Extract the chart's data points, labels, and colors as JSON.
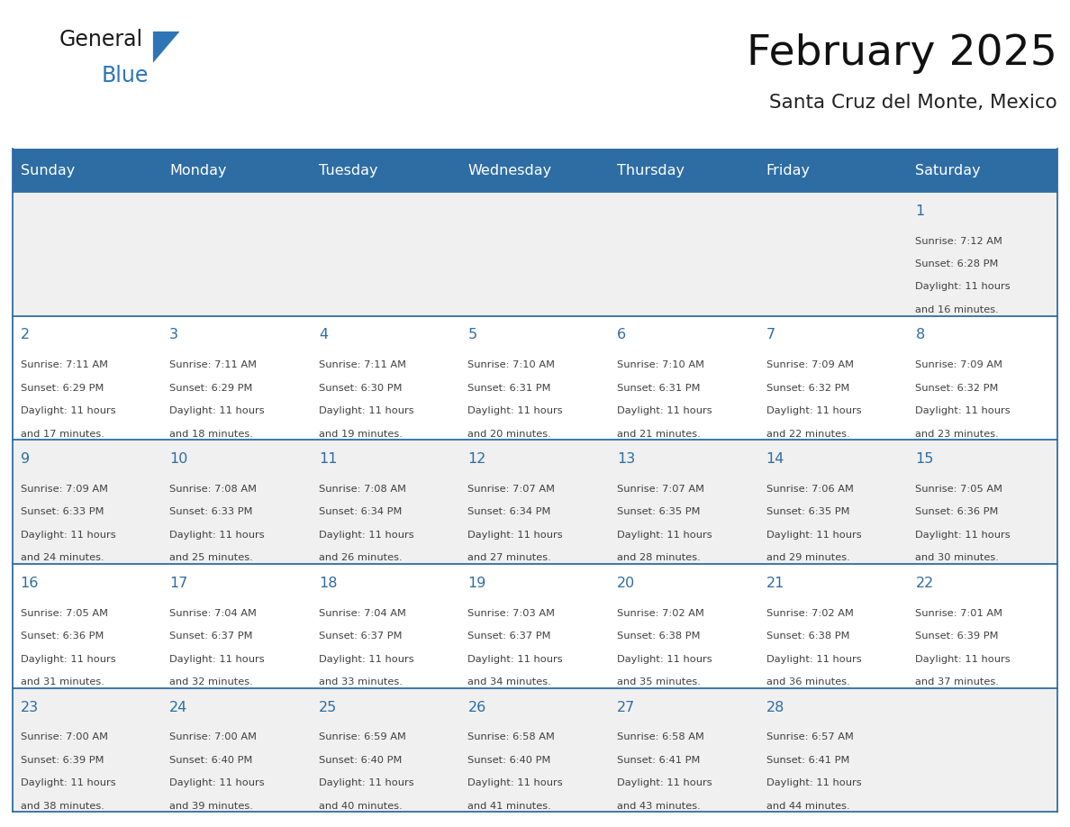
{
  "title": "February 2025",
  "subtitle": "Santa Cruz del Monte, Mexico",
  "header_bg": "#2E6DA4",
  "header_text": "#FFFFFF",
  "row_bg_odd": "#F0F0F0",
  "row_bg_even": "#FFFFFF",
  "cell_border": "#2E6DA4",
  "day_number_color": "#2E6DA4",
  "text_color": "#404040",
  "days_of_week": [
    "Sunday",
    "Monday",
    "Tuesday",
    "Wednesday",
    "Thursday",
    "Friday",
    "Saturday"
  ],
  "weeks": [
    [
      null,
      null,
      null,
      null,
      null,
      null,
      1
    ],
    [
      2,
      3,
      4,
      5,
      6,
      7,
      8
    ],
    [
      9,
      10,
      11,
      12,
      13,
      14,
      15
    ],
    [
      16,
      17,
      18,
      19,
      20,
      21,
      22
    ],
    [
      23,
      24,
      25,
      26,
      27,
      28,
      null
    ]
  ],
  "cell_data": {
    "1": {
      "sunrise": "7:12 AM",
      "sunset": "6:28 PM",
      "daylight_line1": "Daylight: 11 hours",
      "daylight_line2": "and 16 minutes."
    },
    "2": {
      "sunrise": "7:11 AM",
      "sunset": "6:29 PM",
      "daylight_line1": "Daylight: 11 hours",
      "daylight_line2": "and 17 minutes."
    },
    "3": {
      "sunrise": "7:11 AM",
      "sunset": "6:29 PM",
      "daylight_line1": "Daylight: 11 hours",
      "daylight_line2": "and 18 minutes."
    },
    "4": {
      "sunrise": "7:11 AM",
      "sunset": "6:30 PM",
      "daylight_line1": "Daylight: 11 hours",
      "daylight_line2": "and 19 minutes."
    },
    "5": {
      "sunrise": "7:10 AM",
      "sunset": "6:31 PM",
      "daylight_line1": "Daylight: 11 hours",
      "daylight_line2": "and 20 minutes."
    },
    "6": {
      "sunrise": "7:10 AM",
      "sunset": "6:31 PM",
      "daylight_line1": "Daylight: 11 hours",
      "daylight_line2": "and 21 minutes."
    },
    "7": {
      "sunrise": "7:09 AM",
      "sunset": "6:32 PM",
      "daylight_line1": "Daylight: 11 hours",
      "daylight_line2": "and 22 minutes."
    },
    "8": {
      "sunrise": "7:09 AM",
      "sunset": "6:32 PM",
      "daylight_line1": "Daylight: 11 hours",
      "daylight_line2": "and 23 minutes."
    },
    "9": {
      "sunrise": "7:09 AM",
      "sunset": "6:33 PM",
      "daylight_line1": "Daylight: 11 hours",
      "daylight_line2": "and 24 minutes."
    },
    "10": {
      "sunrise": "7:08 AM",
      "sunset": "6:33 PM",
      "daylight_line1": "Daylight: 11 hours",
      "daylight_line2": "and 25 minutes."
    },
    "11": {
      "sunrise": "7:08 AM",
      "sunset": "6:34 PM",
      "daylight_line1": "Daylight: 11 hours",
      "daylight_line2": "and 26 minutes."
    },
    "12": {
      "sunrise": "7:07 AM",
      "sunset": "6:34 PM",
      "daylight_line1": "Daylight: 11 hours",
      "daylight_line2": "and 27 minutes."
    },
    "13": {
      "sunrise": "7:07 AM",
      "sunset": "6:35 PM",
      "daylight_line1": "Daylight: 11 hours",
      "daylight_line2": "and 28 minutes."
    },
    "14": {
      "sunrise": "7:06 AM",
      "sunset": "6:35 PM",
      "daylight_line1": "Daylight: 11 hours",
      "daylight_line2": "and 29 minutes."
    },
    "15": {
      "sunrise": "7:05 AM",
      "sunset": "6:36 PM",
      "daylight_line1": "Daylight: 11 hours",
      "daylight_line2": "and 30 minutes."
    },
    "16": {
      "sunrise": "7:05 AM",
      "sunset": "6:36 PM",
      "daylight_line1": "Daylight: 11 hours",
      "daylight_line2": "and 31 minutes."
    },
    "17": {
      "sunrise": "7:04 AM",
      "sunset": "6:37 PM",
      "daylight_line1": "Daylight: 11 hours",
      "daylight_line2": "and 32 minutes."
    },
    "18": {
      "sunrise": "7:04 AM",
      "sunset": "6:37 PM",
      "daylight_line1": "Daylight: 11 hours",
      "daylight_line2": "and 33 minutes."
    },
    "19": {
      "sunrise": "7:03 AM",
      "sunset": "6:37 PM",
      "daylight_line1": "Daylight: 11 hours",
      "daylight_line2": "and 34 minutes."
    },
    "20": {
      "sunrise": "7:02 AM",
      "sunset": "6:38 PM",
      "daylight_line1": "Daylight: 11 hours",
      "daylight_line2": "and 35 minutes."
    },
    "21": {
      "sunrise": "7:02 AM",
      "sunset": "6:38 PM",
      "daylight_line1": "Daylight: 11 hours",
      "daylight_line2": "and 36 minutes."
    },
    "22": {
      "sunrise": "7:01 AM",
      "sunset": "6:39 PM",
      "daylight_line1": "Daylight: 11 hours",
      "daylight_line2": "and 37 minutes."
    },
    "23": {
      "sunrise": "7:00 AM",
      "sunset": "6:39 PM",
      "daylight_line1": "Daylight: 11 hours",
      "daylight_line2": "and 38 minutes."
    },
    "24": {
      "sunrise": "7:00 AM",
      "sunset": "6:40 PM",
      "daylight_line1": "Daylight: 11 hours",
      "daylight_line2": "and 39 minutes."
    },
    "25": {
      "sunrise": "6:59 AM",
      "sunset": "6:40 PM",
      "daylight_line1": "Daylight: 11 hours",
      "daylight_line2": "and 40 minutes."
    },
    "26": {
      "sunrise": "6:58 AM",
      "sunset": "6:40 PM",
      "daylight_line1": "Daylight: 11 hours",
      "daylight_line2": "and 41 minutes."
    },
    "27": {
      "sunrise": "6:58 AM",
      "sunset": "6:41 PM",
      "daylight_line1": "Daylight: 11 hours",
      "daylight_line2": "and 43 minutes."
    },
    "28": {
      "sunrise": "6:57 AM",
      "sunset": "6:41 PM",
      "daylight_line1": "Daylight: 11 hours",
      "daylight_line2": "and 44 minutes."
    }
  },
  "logo_general_color": "#1a1a1a",
  "logo_blue_color": "#2E75B6",
  "logo_triangle_color": "#2E75B6"
}
